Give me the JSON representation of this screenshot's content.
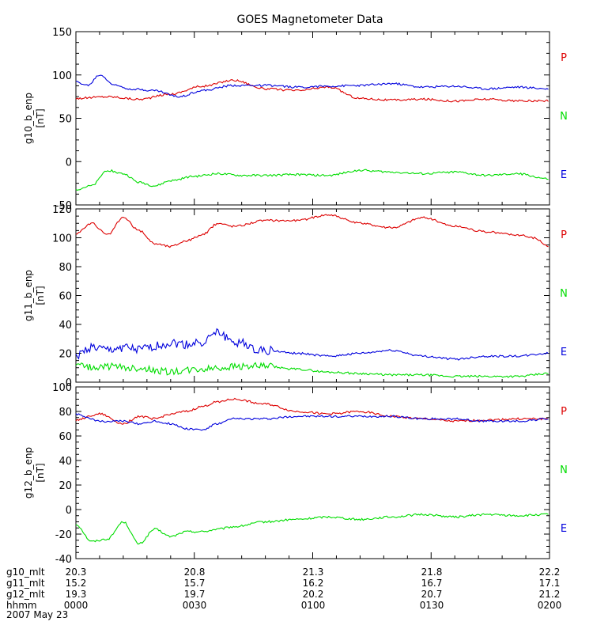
{
  "colors": {
    "P": "#dd0000",
    "N": "#00dd00",
    "E": "#0000dd",
    "axis": "#000000",
    "background": "#ffffff"
  },
  "chart_data": {
    "type": "line",
    "title": "GOES Magnetometer Data",
    "x_range": [
      "0000",
      "0200"
    ],
    "panels": [
      {
        "ylabel_line1": "g10_b_enp",
        "ylabel_line2": "[nT]",
        "ylim": [
          -50,
          150
        ],
        "yticks": [
          -50,
          0,
          50,
          100,
          150
        ],
        "legend": [
          "P",
          "N",
          "E"
        ],
        "series": [
          {
            "name": "P",
            "color": "#dd0000",
            "x": [
              0,
              8,
              16,
              24,
              32,
              40,
              48,
              56,
              64,
              72,
              80,
              88,
              96,
              104,
              112,
              120
            ],
            "values": [
              73,
              75,
              72,
              78,
              87,
              94,
              84,
              82,
              86,
              73,
              71,
              72,
              70,
              72,
              70,
              70
            ]
          },
          {
            "name": "E",
            "color": "#0000dd",
            "x": [
              0,
              3,
              6,
              10,
              14,
              20,
              26,
              32,
              40,
              48,
              56,
              64,
              72,
              80,
              88,
              96,
              104,
              112,
              120
            ],
            "values": [
              92,
              88,
              100,
              88,
              84,
              82,
              75,
              82,
              88,
              88,
              86,
              87,
              88,
              90,
              86,
              87,
              84,
              86,
              84
            ]
          },
          {
            "name": "N",
            "color": "#00dd00",
            "x": [
              0,
              4,
              8,
              12,
              16,
              20,
              24,
              30,
              36,
              42,
              48,
              56,
              64,
              72,
              80,
              88,
              96,
              104,
              112,
              120
            ],
            "values": [
              -32,
              -28,
              -10,
              -14,
              -24,
              -28,
              -22,
              -17,
              -14,
              -16,
              -16,
              -15,
              -16,
              -10,
              -12,
              -14,
              -12,
              -16,
              -14,
              -20
            ]
          }
        ]
      },
      {
        "ylabel_line1": "g11_b_enp",
        "ylabel_line2": "[nT]",
        "ylim": [
          0,
          120
        ],
        "yticks": [
          0,
          20,
          40,
          60,
          80,
          100,
          120
        ],
        "legend": [
          "P",
          "N",
          "E"
        ],
        "series": [
          {
            "name": "P",
            "color": "#dd0000",
            "x": [
              0,
              4,
              8,
              12,
              16,
              20,
              24,
              28,
              32,
              36,
              40,
              48,
              56,
              64,
              72,
              80,
              88,
              96,
              104,
              112,
              116,
              120
            ],
            "values": [
              103,
              110,
              102,
              114,
              105,
              96,
              94,
              98,
              102,
              110,
              108,
              112,
              112,
              116,
              110,
              107,
              114,
              108,
              104,
              102,
              100,
              94
            ]
          },
          {
            "name": "E",
            "color": "#0000dd",
            "x": [
              0,
              4,
              8,
              12,
              16,
              20,
              24,
              28,
              32,
              36,
              40,
              48,
              56,
              64,
              72,
              80,
              88,
              96,
              104,
              112,
              120
            ],
            "values": [
              18,
              24,
              22,
              24,
              22,
              25,
              27,
              26,
              28,
              34,
              28,
              22,
              20,
              18,
              20,
              22,
              18,
              16,
              18,
              18,
              20
            ]
          },
          {
            "name": "N",
            "color": "#00dd00",
            "x": [
              0,
              4,
              8,
              12,
              16,
              20,
              24,
              28,
              32,
              36,
              40,
              48,
              56,
              64,
              72,
              80,
              88,
              96,
              104,
              112,
              120
            ],
            "values": [
              12,
              10,
              11,
              10,
              10,
              8,
              7,
              8,
              9,
              10,
              11,
              11,
              9,
              7,
              6,
              5,
              5,
              4,
              4,
              4,
              6
            ]
          }
        ]
      },
      {
        "ylabel_line1": "g12_b_enp",
        "ylabel_line2": "[nT]",
        "ylim": [
          -40,
          100
        ],
        "yticks": [
          -40,
          -20,
          0,
          20,
          40,
          60,
          80,
          100
        ],
        "legend": [
          "P",
          "N",
          "E"
        ],
        "series": [
          {
            "name": "P",
            "color": "#dd0000",
            "x": [
              0,
              6,
              12,
              16,
              20,
              24,
              28,
              32,
              36,
              40,
              48,
              56,
              64,
              72,
              80,
              88,
              96,
              104,
              112,
              120
            ],
            "values": [
              73,
              78,
              70,
              76,
              74,
              78,
              80,
              84,
              88,
              90,
              86,
              80,
              78,
              80,
              76,
              74,
              72,
              73,
              74,
              74
            ]
          },
          {
            "name": "E",
            "color": "#0000dd",
            "x": [
              0,
              6,
              12,
              16,
              20,
              24,
              28,
              32,
              36,
              40,
              48,
              56,
              64,
              72,
              80,
              88,
              96,
              104,
              112,
              120
            ],
            "values": [
              78,
              72,
              72,
              70,
              72,
              70,
              66,
              65,
              70,
              74,
              74,
              76,
              76,
              76,
              76,
              74,
              74,
              72,
              72,
              74
            ]
          },
          {
            "name": "N",
            "color": "#00dd00",
            "x": [
              0,
              4,
              8,
              12,
              16,
              20,
              24,
              28,
              32,
              36,
              40,
              48,
              56,
              64,
              72,
              80,
              88,
              96,
              104,
              112,
              120
            ],
            "values": [
              -12,
              -26,
              -24,
              -10,
              -28,
              -16,
              -22,
              -18,
              -18,
              -16,
              -14,
              -10,
              -8,
              -6,
              -8,
              -6,
              -4,
              -6,
              -4,
              -5,
              -4
            ]
          }
        ]
      }
    ]
  },
  "footer": {
    "rows": [
      {
        "label": "g10_mlt",
        "values": [
          "20.3",
          "20.8",
          "21.3",
          "21.8",
          "22.2"
        ]
      },
      {
        "label": "g11_mlt",
        "values": [
          "15.2",
          "15.7",
          "16.2",
          "16.7",
          "17.1"
        ]
      },
      {
        "label": "g12_mlt",
        "values": [
          "19.3",
          "19.7",
          "20.2",
          "20.7",
          "21.2"
        ]
      },
      {
        "label": "hhmm",
        "values": [
          "0000",
          "0030",
          "0100",
          "0130",
          "0200"
        ]
      }
    ],
    "date": "2007 May 23"
  }
}
